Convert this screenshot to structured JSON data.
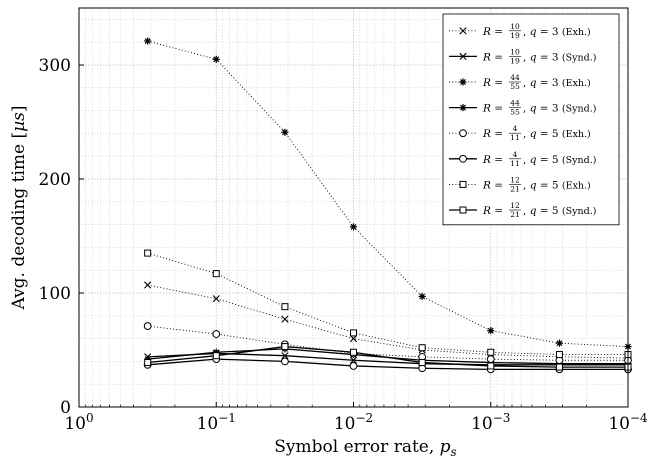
{
  "chart_data": {
    "type": "line",
    "xlabel": "Symbol error rate, p_s",
    "ylabel": "Avg. decoding time [µs]",
    "xscale": "log-reversed",
    "xlim": [
      1,
      0.0001
    ],
    "ylim": [
      0,
      350
    ],
    "x_ticks": [
      {
        "value": 1,
        "base": "10",
        "exp": "0"
      },
      {
        "value": 0.1,
        "base": "10",
        "exp": "−1"
      },
      {
        "value": 0.01,
        "base": "10",
        "exp": "−2"
      },
      {
        "value": 0.001,
        "base": "10",
        "exp": "−3"
      },
      {
        "value": 0.0001,
        "base": "10",
        "exp": "−4"
      }
    ],
    "y_ticks": [
      0,
      100,
      200,
      300
    ],
    "grid": true,
    "legend_position": "top-right",
    "x": [
      0.316,
      0.1,
      0.0316,
      0.01,
      0.00316,
      0.001,
      0.000316,
      0.0001
    ],
    "series": [
      {
        "name": "R = 10/19, q = 3 (Exh.)",
        "R_num": "10",
        "R_den": "19",
        "q": "3",
        "method": "Exh.",
        "line": "dotted",
        "marker": "x",
        "values": [
          107,
          95,
          77,
          60,
          50,
          46,
          44,
          43
        ]
      },
      {
        "name": "R = 10/19, q = 3 (Synd.)",
        "R_num": "10",
        "R_den": "19",
        "q": "3",
        "method": "Synd.",
        "line": "solid",
        "marker": "x",
        "values": [
          44,
          47,
          45,
          41,
          38,
          37,
          37,
          37
        ]
      },
      {
        "name": "R = 44/55, q = 3 (Exh.)",
        "R_num": "44",
        "R_den": "55",
        "q": "3",
        "method": "Exh.",
        "line": "dotted",
        "marker": "star",
        "values": [
          321,
          305,
          241,
          158,
          97,
          67,
          56,
          53
        ]
      },
      {
        "name": "R = 44/55, q = 3 (Synd.)",
        "R_num": "44",
        "R_den": "55",
        "q": "3",
        "method": "Synd.",
        "line": "solid",
        "marker": "star",
        "values": [
          42,
          48,
          51,
          46,
          41,
          39,
          38,
          38
        ]
      },
      {
        "name": "R = 4/11, q = 5 (Exh.)",
        "R_num": "4",
        "R_den": "11",
        "q": "5",
        "method": "Exh.",
        "line": "dotted",
        "marker": "circle",
        "values": [
          71,
          64,
          55,
          47,
          44,
          42,
          41,
          41
        ]
      },
      {
        "name": "R = 4/11, q = 5 (Synd.)",
        "R_num": "4",
        "R_den": "11",
        "q": "5",
        "method": "Synd.",
        "line": "solid",
        "marker": "circle",
        "values": [
          37,
          42,
          40,
          36,
          34,
          33,
          33,
          33
        ]
      },
      {
        "name": "R = 12/21, q = 5 (Exh.)",
        "R_num": "12",
        "R_den": "21",
        "q": "5",
        "method": "Exh.",
        "line": "dotted",
        "marker": "square",
        "values": [
          135,
          117,
          88,
          65,
          52,
          48,
          46,
          46
        ]
      },
      {
        "name": "R = 12/21, q = 5 (Synd.)",
        "R_num": "12",
        "R_den": "21",
        "q": "5",
        "method": "Synd.",
        "line": "solid",
        "marker": "square",
        "values": [
          39,
          45,
          53,
          48,
          39,
          36,
          35,
          35
        ]
      }
    ]
  }
}
